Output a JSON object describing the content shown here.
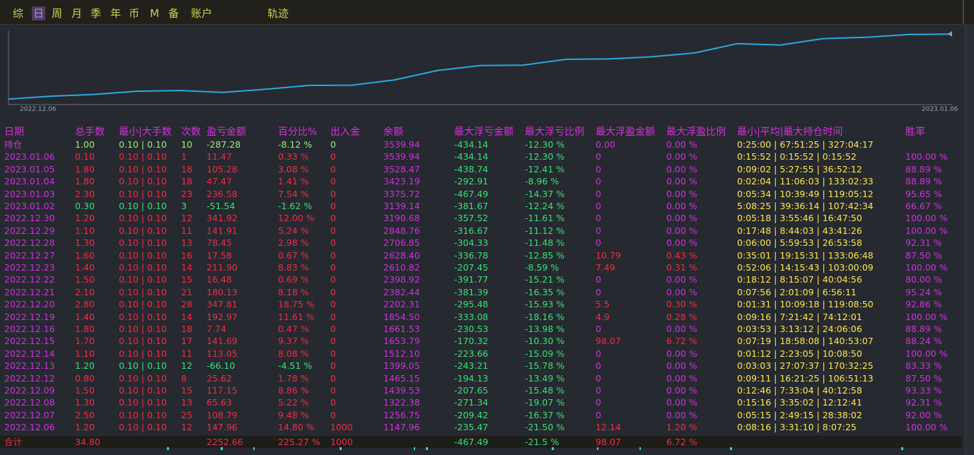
{
  "tabs": [
    {
      "label": "综",
      "active": false
    },
    {
      "label": "日",
      "active": true
    },
    {
      "label": "周",
      "active": false
    },
    {
      "label": "月",
      "active": false
    },
    {
      "label": "季",
      "active": false
    },
    {
      "label": "年",
      "active": false
    },
    {
      "label": "币",
      "active": false
    },
    {
      "label": "M",
      "active": false
    },
    {
      "label": "备",
      "active": false
    },
    {
      "label": "账户",
      "active": false
    },
    {
      "label": "轨迹",
      "active": false
    }
  ],
  "chart": {
    "x_start_label": "2022.12.06",
    "x_end_label": "2023.01.06",
    "line_color": "#2aa9e0",
    "equity": [
      1147.96,
      1256.75,
      1322.38,
      1439.53,
      1465.15,
      1399.05,
      1512.1,
      1653.79,
      1661.53,
      1854.5,
      2202.31,
      2382.44,
      2398.92,
      2610.82,
      2628.4,
      2706.85,
      2848.76,
      3190.68,
      3139.14,
      3375.72,
      3423.19,
      3528.47,
      3539.94
    ]
  },
  "columns": {
    "date": "日期",
    "lots": "总手数",
    "minmax": "最小|大手数",
    "count": "次数",
    "pnl": "盈亏金额",
    "pct": "百分比%",
    "io": "出入金",
    "balance": "余额",
    "max_float_loss": "最大浮亏金额",
    "max_float_loss_pct": "最大浮亏比例",
    "max_float_profit": "最大浮盈金额",
    "max_float_profit_pct": "最大浮盈比例",
    "hold_time": "最小|平均|最大持仓时间",
    "winrate": "胜率"
  },
  "rows": [
    {
      "date": "持仓",
      "lots": "1.00",
      "minmax": "0.10 | 0.10",
      "count": "10",
      "pnl": "-287.28",
      "pct": "-8.12 %",
      "io": "0",
      "balance": "3539.94",
      "mfl": "-434.14",
      "mflp": "-12.30 %",
      "mfp": "0.00",
      "mfpp": "0.00 %",
      "hold": "0:25:00 | 67:51:25 | 327:04:17",
      "win": "",
      "color": "yellow"
    },
    {
      "date": "2023.01.06",
      "lots": "0.10",
      "minmax": "0.10 | 0.10",
      "count": "1",
      "pnl": "11.47",
      "pct": "0.33 %",
      "io": "0",
      "balance": "3539.94",
      "mfl": "-434.14",
      "mflp": "-12.30 %",
      "mfp": "0",
      "mfpp": "0.00 %",
      "hold": "0:15:52 | 0:15:52 | 0:15:52",
      "win": "100.00 %",
      "color": "red"
    },
    {
      "date": "2023.01.05",
      "lots": "1.80",
      "minmax": "0.10 | 0.10",
      "count": "18",
      "pnl": "105.28",
      "pct": "3.08 %",
      "io": "0",
      "balance": "3528.47",
      "mfl": "-438.74",
      "mflp": "-12.41 %",
      "mfp": "0",
      "mfpp": "0.00 %",
      "hold": "0:09:02 | 5:27:55 | 36:52:12",
      "win": "88.89 %",
      "color": "red"
    },
    {
      "date": "2023.01.04",
      "lots": "1.80",
      "minmax": "0.10 | 0.10",
      "count": "18",
      "pnl": "47.47",
      "pct": "1.41 %",
      "io": "0",
      "balance": "3423.19",
      "mfl": "-292.91",
      "mflp": "-8.96 %",
      "mfp": "0",
      "mfpp": "0.00 %",
      "hold": "0:02:04 | 11:06:03 | 133:02:33",
      "win": "88.89 %",
      "color": "red"
    },
    {
      "date": "2023.01.03",
      "lots": "2.30",
      "minmax": "0.10 | 0.10",
      "count": "23",
      "pnl": "236.58",
      "pct": "7.54 %",
      "io": "0",
      "balance": "3375.72",
      "mfl": "-467.49",
      "mflp": "-14.37 %",
      "mfp": "0",
      "mfpp": "0.00 %",
      "hold": "0:05:34 | 10:39:49 | 119:05:12",
      "win": "95.65 %",
      "color": "red"
    },
    {
      "date": "2023.01.02",
      "lots": "0.30",
      "minmax": "0.10 | 0.10",
      "count": "3",
      "pnl": "-51.54",
      "pct": "-1.62 %",
      "io": "0",
      "balance": "3139.14",
      "mfl": "-381.67",
      "mflp": "-12.24 %",
      "mfp": "0",
      "mfpp": "0.00 %",
      "hold": "5:08:25 | 39:36:14 | 107:42:34",
      "win": "66.67 %",
      "color": "green"
    },
    {
      "date": "2022.12.30",
      "lots": "1.20",
      "minmax": "0.10 | 0.10",
      "count": "12",
      "pnl": "341.92",
      "pct": "12.00 %",
      "io": "0",
      "balance": "3190.68",
      "mfl": "-357.52",
      "mflp": "-11.61 %",
      "mfp": "0",
      "mfpp": "0.00 %",
      "hold": "0:05:18 | 3:55:46 | 16:47:50",
      "win": "100.00 %",
      "color": "red"
    },
    {
      "date": "2022.12.29",
      "lots": "1.10",
      "minmax": "0.10 | 0.10",
      "count": "11",
      "pnl": "141.91",
      "pct": "5.24 %",
      "io": "0",
      "balance": "2848.76",
      "mfl": "-316.67",
      "mflp": "-11.12 %",
      "mfp": "0",
      "mfpp": "0.00 %",
      "hold": "0:17:48 | 8:44:03 | 43:41:26",
      "win": "100.00 %",
      "color": "red"
    },
    {
      "date": "2022.12.28",
      "lots": "1.30",
      "minmax": "0.10 | 0.10",
      "count": "13",
      "pnl": "78.45",
      "pct": "2.98 %",
      "io": "0",
      "balance": "2706.85",
      "mfl": "-304.33",
      "mflp": "-11.48 %",
      "mfp": "0",
      "mfpp": "0.00 %",
      "hold": "0:06:00 | 5:59:53 | 26:53:58",
      "win": "92.31 %",
      "color": "red"
    },
    {
      "date": "2022.12.27",
      "lots": "1.60",
      "minmax": "0.10 | 0.10",
      "count": "16",
      "pnl": "17.58",
      "pct": "0.67 %",
      "io": "0",
      "balance": "2628.40",
      "mfl": "-336.78",
      "mflp": "-12.85 %",
      "mfp": "10.79",
      "mfpp": "0.43 %",
      "hold": "0:35:01 | 19:15:31 | 133:06:48",
      "win": "87.50 %",
      "color": "red"
    },
    {
      "date": "2022.12.23",
      "lots": "1.40",
      "minmax": "0.10 | 0.10",
      "count": "14",
      "pnl": "211.90",
      "pct": "8.83 %",
      "io": "0",
      "balance": "2610.82",
      "mfl": "-207.45",
      "mflp": "-8.59 %",
      "mfp": "7.49",
      "mfpp": "0.31 %",
      "hold": "0:52:06 | 14:15:43 | 103:00:09",
      "win": "100.00 %",
      "color": "red"
    },
    {
      "date": "2022.12.22",
      "lots": "1.50",
      "minmax": "0.10 | 0.10",
      "count": "15",
      "pnl": "16.48",
      "pct": "0.69 %",
      "io": "0",
      "balance": "2398.92",
      "mfl": "-391.77",
      "mflp": "-15.21 %",
      "mfp": "0",
      "mfpp": "0.00 %",
      "hold": "0:18:12 | 8:15:07 | 40:04:56",
      "win": "80.00 %",
      "color": "red"
    },
    {
      "date": "2022.12.21",
      "lots": "2.10",
      "minmax": "0.10 | 0.10",
      "count": "21",
      "pnl": "180.13",
      "pct": "8.18 %",
      "io": "0",
      "balance": "2382.44",
      "mfl": "-381.39",
      "mflp": "-16.35 %",
      "mfp": "0",
      "mfpp": "0.00 %",
      "hold": "0:07:56 | 2:01:09 | 6:56:11",
      "win": "95.24 %",
      "color": "red"
    },
    {
      "date": "2022.12.20",
      "lots": "2.80",
      "minmax": "0.10 | 0.10",
      "count": "28",
      "pnl": "347.81",
      "pct": "18.75 %",
      "io": "0",
      "balance": "2202.31",
      "mfl": "-295.48",
      "mflp": "-15.93 %",
      "mfp": "5.5",
      "mfpp": "0.30 %",
      "hold": "0:01:31 | 10:09:18 | 119:08:50",
      "win": "92.86 %",
      "color": "red"
    },
    {
      "date": "2022.12.19",
      "lots": "1.40",
      "minmax": "0.10 | 0.10",
      "count": "14",
      "pnl": "192.97",
      "pct": "11.61 %",
      "io": "0",
      "balance": "1854.50",
      "mfl": "-333.08",
      "mflp": "-18.16 %",
      "mfp": "4.9",
      "mfpp": "0.28 %",
      "hold": "0:09:16 | 7:21:42 | 74:12:01",
      "win": "100.00 %",
      "color": "red"
    },
    {
      "date": "2022.12.16",
      "lots": "1.80",
      "minmax": "0.10 | 0.10",
      "count": "18",
      "pnl": "7.74",
      "pct": "0.47 %",
      "io": "0",
      "balance": "1661.53",
      "mfl": "-230.53",
      "mflp": "-13.98 %",
      "mfp": "0",
      "mfpp": "0.00 %",
      "hold": "0:03:53 | 3:13:12 | 24:06:06",
      "win": "88.89 %",
      "color": "red"
    },
    {
      "date": "2022.12.15",
      "lots": "1.70",
      "minmax": "0.10 | 0.10",
      "count": "17",
      "pnl": "141.69",
      "pct": "9.37 %",
      "io": "0",
      "balance": "1653.79",
      "mfl": "-170.32",
      "mflp": "-10.30 %",
      "mfp": "98.07",
      "mfpp": "6.72 %",
      "hold": "0:07:19 | 18:58:08 | 140:53:07",
      "win": "88.24 %",
      "color": "red"
    },
    {
      "date": "2022.12.14",
      "lots": "1.10",
      "minmax": "0.10 | 0.10",
      "count": "11",
      "pnl": "113.05",
      "pct": "8.08 %",
      "io": "0",
      "balance": "1512.10",
      "mfl": "-223.66",
      "mflp": "-15.09 %",
      "mfp": "0",
      "mfpp": "0.00 %",
      "hold": "0:01:12 | 2:23:05 | 10:08:50",
      "win": "100.00 %",
      "color": "red"
    },
    {
      "date": "2022.12.13",
      "lots": "1.20",
      "minmax": "0.10 | 0.10",
      "count": "12",
      "pnl": "-66.10",
      "pct": "-4.51 %",
      "io": "0",
      "balance": "1399.05",
      "mfl": "-243.21",
      "mflp": "-15.78 %",
      "mfp": "0",
      "mfpp": "0.00 %",
      "hold": "0:03:03 | 27:07:37 | 170:32:25",
      "win": "83.33 %",
      "color": "green"
    },
    {
      "date": "2022.12.12",
      "lots": "0.80",
      "minmax": "0.10 | 0.10",
      "count": "8",
      "pnl": "25.62",
      "pct": "1.78 %",
      "io": "0",
      "balance": "1465.15",
      "mfl": "-194.13",
      "mflp": "-13.49 %",
      "mfp": "0",
      "mfpp": "0.00 %",
      "hold": "0:09:11 | 16:21:25 | 106:51:13",
      "win": "87.50 %",
      "color": "red"
    },
    {
      "date": "2022.12.09",
      "lots": "1.50",
      "minmax": "0.10 | 0.10",
      "count": "15",
      "pnl": "117.15",
      "pct": "8.86 %",
      "io": "0",
      "balance": "1439.53",
      "mfl": "-207.65",
      "mflp": "-15.48 %",
      "mfp": "0",
      "mfpp": "0.00 %",
      "hold": "0:12:46 | 7:33:04 | 40:12:58",
      "win": "93.33 %",
      "color": "red"
    },
    {
      "date": "2022.12.08",
      "lots": "1.30",
      "minmax": "0.10 | 0.10",
      "count": "13",
      "pnl": "65.63",
      "pct": "5.22 %",
      "io": "0",
      "balance": "1322.38",
      "mfl": "-271.34",
      "mflp": "-19.07 %",
      "mfp": "0",
      "mfpp": "0.00 %",
      "hold": "0:15:16 | 3:35:02 | 12:12:41",
      "win": "92.31 %",
      "color": "red"
    },
    {
      "date": "2022.12.07",
      "lots": "2.50",
      "minmax": "0.10 | 0.10",
      "count": "25",
      "pnl": "108.79",
      "pct": "9.48 %",
      "io": "0",
      "balance": "1256.75",
      "mfl": "-209.42",
      "mflp": "-16.37 %",
      "mfp": "0",
      "mfpp": "0.00 %",
      "hold": "0:05:15 | 2:49:15 | 28:38:02",
      "win": "92.00 %",
      "color": "red"
    },
    {
      "date": "2022.12.06",
      "lots": "1.20",
      "minmax": "0.10 | 0.10",
      "count": "12",
      "pnl": "147.96",
      "pct": "14.80 %",
      "io": "1000",
      "balance": "1147.96",
      "mfl": "-235.47",
      "mflp": "-21.50 %",
      "mfp": "12.14",
      "mfpp": "1.20 %",
      "hold": "0:08:16 | 3:31:10 | 8:07:25",
      "win": "100.00 %",
      "color": "red"
    }
  ],
  "total": {
    "label": "合计",
    "lots": "34.80",
    "pnl": "2252.66",
    "pct": "225.27 %",
    "io": "1000",
    "mfl": "-467.49",
    "mflp": "-21.5 %",
    "mfp": "98.07",
    "mfpp": "6.72 %"
  }
}
